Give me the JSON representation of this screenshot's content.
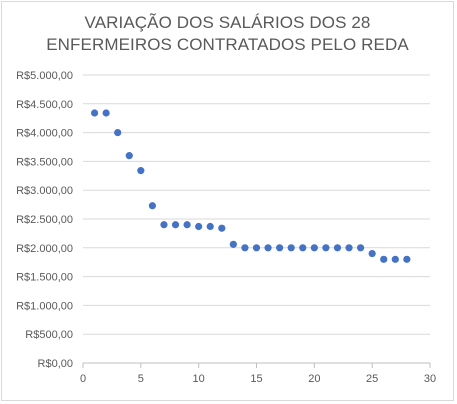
{
  "chart_data": {
    "type": "scatter",
    "title_lines": [
      "VARIAÇÃO DOS SALÁRIOS DOS 28",
      "ENFERMEIROS CONTRATADOS PELO REDA"
    ],
    "xlabel": "",
    "ylabel": "",
    "xlim": [
      0,
      30
    ],
    "ylim": [
      0,
      5000
    ],
    "x_ticks": [
      0,
      5,
      10,
      15,
      20,
      25,
      30
    ],
    "y_ticks": [
      0,
      500,
      1000,
      1500,
      2000,
      2500,
      3000,
      3500,
      4000,
      4500,
      5000
    ],
    "y_tick_labels": [
      "R$0,00",
      "R$500,00",
      "R$1.000,00",
      "R$1.500,00",
      "R$2.000,00",
      "R$2.500,00",
      "R$3.000,00",
      "R$3.500,00",
      "R$4.000,00",
      "R$4.500,00",
      "R$5.000,00"
    ],
    "grid": "horizontal",
    "legend": "none",
    "marker_color": "#4472c4",
    "points": [
      {
        "x": 1,
        "y": 4340
      },
      {
        "x": 2,
        "y": 4340
      },
      {
        "x": 3,
        "y": 4000
      },
      {
        "x": 4,
        "y": 3600
      },
      {
        "x": 5,
        "y": 3340
      },
      {
        "x": 6,
        "y": 2730
      },
      {
        "x": 7,
        "y": 2400
      },
      {
        "x": 8,
        "y": 2400
      },
      {
        "x": 9,
        "y": 2400
      },
      {
        "x": 10,
        "y": 2370
      },
      {
        "x": 11,
        "y": 2370
      },
      {
        "x": 12,
        "y": 2340
      },
      {
        "x": 13,
        "y": 2060
      },
      {
        "x": 14,
        "y": 2000
      },
      {
        "x": 15,
        "y": 2000
      },
      {
        "x": 16,
        "y": 2000
      },
      {
        "x": 17,
        "y": 2000
      },
      {
        "x": 18,
        "y": 2000
      },
      {
        "x": 19,
        "y": 2000
      },
      {
        "x": 20,
        "y": 2000
      },
      {
        "x": 21,
        "y": 2000
      },
      {
        "x": 22,
        "y": 2000
      },
      {
        "x": 23,
        "y": 2000
      },
      {
        "x": 24,
        "y": 2000
      },
      {
        "x": 25,
        "y": 1900
      },
      {
        "x": 26,
        "y": 1800
      },
      {
        "x": 27,
        "y": 1800
      },
      {
        "x": 28,
        "y": 1800
      }
    ]
  }
}
